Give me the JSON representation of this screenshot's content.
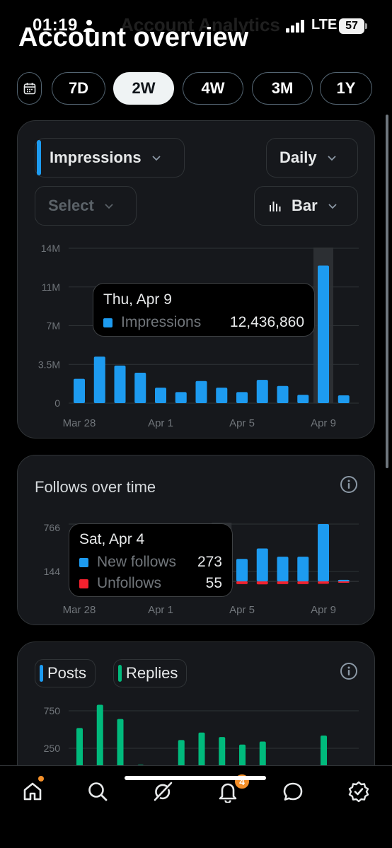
{
  "status_bar": {
    "time": "01:19",
    "network": "LTE",
    "battery": "57",
    "ghost_title": "Account Analytics"
  },
  "page": {
    "heading": "Account overview"
  },
  "range": {
    "options": [
      "7D",
      "2W",
      "4W",
      "3M",
      "1Y"
    ],
    "selected": "2W"
  },
  "impressions_card": {
    "metric_dropdown": "Impressions",
    "interval_dropdown": "Daily",
    "compare_dropdown": "Select",
    "chart_type_dropdown": "Bar",
    "tooltip": {
      "date": "Thu, Apr 9",
      "label": "Impressions",
      "value": "12,436,860"
    }
  },
  "follows_card": {
    "title": "Follows over time",
    "tooltip": {
      "date": "Sat, Apr 4",
      "rows": [
        {
          "label": "New follows",
          "value": "273"
        },
        {
          "label": "Unfollows",
          "value": "55"
        }
      ]
    }
  },
  "posts_card": {
    "tags": [
      "Posts",
      "Replies"
    ]
  },
  "nav": {
    "notifications_badge": "4"
  },
  "colors": {
    "accent_blue": "#1d9bf0",
    "accent_green": "#00ba7c",
    "accent_red": "#f4212e",
    "badge_orange": "#f4902a"
  },
  "chart_data": [
    {
      "type": "bar",
      "title": "Impressions",
      "x": [
        "Mar 28",
        "Mar 29",
        "Mar 30",
        "Mar 31",
        "Apr 1",
        "Apr 2",
        "Apr 3",
        "Apr 4",
        "Apr 5",
        "Apr 6",
        "Apr 7",
        "Apr 8",
        "Apr 9",
        "Apr 10"
      ],
      "x_ticks": [
        "Mar 28",
        "Apr 1",
        "Apr 5",
        "Apr 9"
      ],
      "y_ticks": [
        "0",
        "3.5M",
        "7M",
        "11M",
        "14M"
      ],
      "ylim": [
        0,
        14000000
      ],
      "values": [
        2200000,
        4200000,
        3400000,
        2750000,
        1400000,
        1000000,
        2000000,
        1400000,
        1000000,
        2100000,
        1550000,
        750000,
        12436860,
        700000
      ],
      "highlight": "Apr 9",
      "grid": true
    },
    {
      "type": "bar",
      "title": "Follows over time",
      "x": [
        "Mar 28",
        "Mar 29",
        "Mar 30",
        "Mar 31",
        "Apr 1",
        "Apr 2",
        "Apr 3",
        "Apr 4",
        "Apr 5",
        "Apr 6",
        "Apr 7",
        "Apr 8",
        "Apr 9",
        "Apr 10"
      ],
      "x_ticks": [
        "Mar 28",
        "Apr 1",
        "Apr 5",
        "Apr 9"
      ],
      "y_ticks": [
        "144",
        "766"
      ],
      "series": [
        {
          "name": "New follows",
          "values": [
            null,
            null,
            null,
            null,
            null,
            null,
            null,
            273,
            300,
            440,
            330,
            330,
            766,
            20
          ]
        },
        {
          "name": "Unfollows",
          "values": [
            null,
            null,
            null,
            null,
            null,
            null,
            null,
            55,
            50,
            55,
            50,
            50,
            45,
            10
          ]
        }
      ],
      "highlight": "Apr 4",
      "grid": true
    },
    {
      "type": "bar",
      "title": "",
      "x": [
        "Mar 28",
        "Mar 29",
        "Mar 30",
        "Mar 31",
        "Apr 1",
        "Apr 2",
        "Apr 3",
        "Apr 4",
        "Apr 5",
        "Apr 6",
        "Apr 7",
        "Apr 8",
        "Apr 9",
        "Apr 10"
      ],
      "y_ticks": [
        "250",
        "750"
      ],
      "series": [
        {
          "name": "Posts",
          "values": [
            15,
            0,
            0,
            0,
            0,
            0,
            0,
            0,
            0,
            0,
            0,
            0,
            0,
            0
          ]
        },
        {
          "name": "Replies",
          "values": [
            520,
            830,
            640,
            30,
            0,
            360,
            460,
            400,
            300,
            340,
            0,
            0,
            420,
            0
          ]
        }
      ],
      "grid": true
    }
  ]
}
